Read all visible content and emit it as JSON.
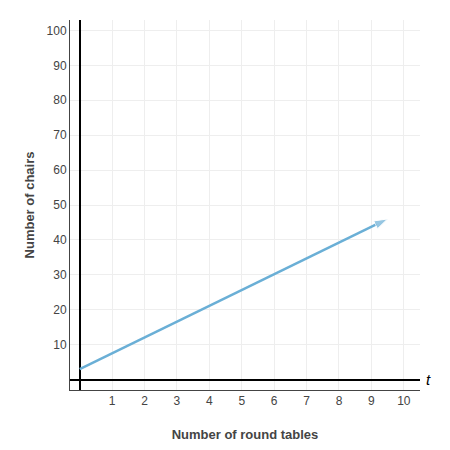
{
  "chart_data": {
    "type": "line",
    "xlabel": "Number of round tables",
    "ylabel": "Number of chairs",
    "annotations": [
      "t"
    ],
    "x": [
      0,
      9.5
    ],
    "values": [
      3,
      46
    ],
    "color": "#6aafd6",
    "marker": "arrow",
    "xlim": [
      -0.3,
      10.5
    ],
    "ylim": [
      -3,
      103
    ],
    "xticks": [
      1,
      2,
      3,
      4,
      5,
      6,
      7,
      8,
      9,
      10
    ],
    "yticks": [
      10,
      20,
      30,
      40,
      50,
      60,
      70,
      80,
      90,
      100
    ],
    "grid": true
  }
}
